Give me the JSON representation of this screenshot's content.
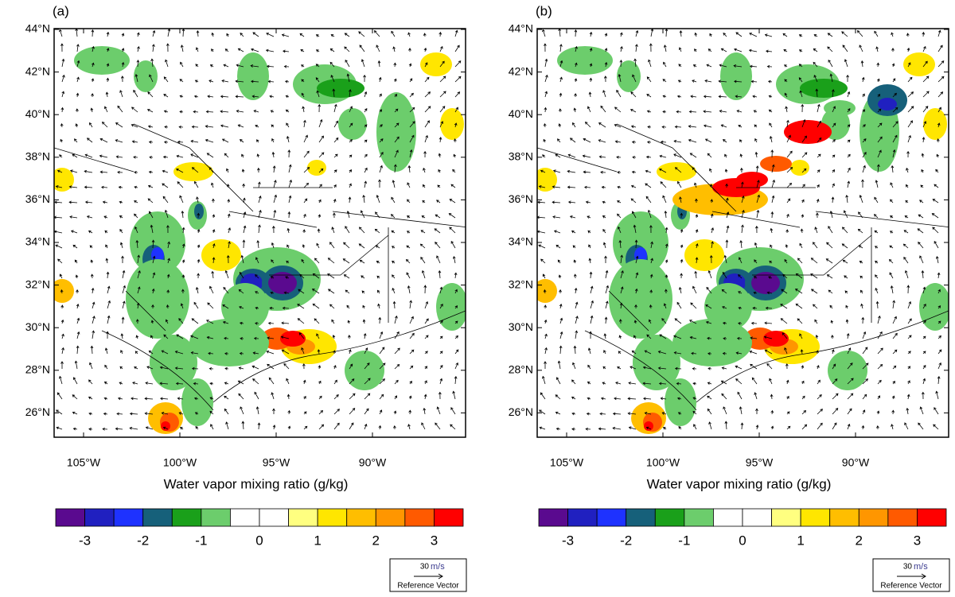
{
  "panels": [
    {
      "label": "(a)",
      "lat_ticks": [
        {
          "value": 44,
          "label": "44°N"
        },
        {
          "value": 42,
          "label": "42°N"
        },
        {
          "value": 40,
          "label": "40°N"
        },
        {
          "value": 38,
          "label": "38°N"
        },
        {
          "value": 36,
          "label": "36°N"
        },
        {
          "value": 34,
          "label": "34°N"
        },
        {
          "value": 32,
          "label": "32°N"
        },
        {
          "value": 30,
          "label": "30°N"
        },
        {
          "value": 28,
          "label": "28°N"
        },
        {
          "value": 26,
          "label": "26°N"
        }
      ],
      "lon_ticks": [
        {
          "value": -105,
          "label": "105°W"
        },
        {
          "value": -100,
          "label": "100°W"
        },
        {
          "value": -95,
          "label": "95°W"
        },
        {
          "value": -90,
          "label": "90°W"
        }
      ],
      "colorbar_title": "Water vapor mixing ratio (g/kg)",
      "colorbar_lim": [
        -3.5,
        3.5
      ],
      "colorbar_ticks": [
        -3,
        -2,
        -1,
        0,
        1,
        2,
        3
      ],
      "colorbar_colors": [
        "#5a0a8f",
        "#2020c0",
        "#1e32ff",
        "#16607a",
        "#1aa01a",
        "#6ccd6c",
        "#ffffff",
        "#ffffff",
        "#ffff80",
        "#ffe600",
        "#ffbe00",
        "#ff9600",
        "#ff5a00",
        "#ff0000"
      ],
      "ref_speed": "30",
      "ref_unit": "m/s",
      "ref_label": "Reference Vector"
    },
    {
      "label": "(b)",
      "lat_ticks": [
        {
          "value": 44,
          "label": "44°N"
        },
        {
          "value": 42,
          "label": "42°N"
        },
        {
          "value": 40,
          "label": "40°N"
        },
        {
          "value": 38,
          "label": "38°N"
        },
        {
          "value": 36,
          "label": "36°N"
        },
        {
          "value": 34,
          "label": "34°N"
        },
        {
          "value": 32,
          "label": "32°N"
        },
        {
          "value": 30,
          "label": "30°N"
        },
        {
          "value": 28,
          "label": "28°N"
        },
        {
          "value": 26,
          "label": "26°N"
        }
      ],
      "lon_ticks": [
        {
          "value": -105,
          "label": "105°W"
        },
        {
          "value": -100,
          "label": "100°W"
        },
        {
          "value": -95,
          "label": "95°W"
        },
        {
          "value": -90,
          "label": "90°W"
        }
      ],
      "colorbar_title": "Water vapor mixing ratio (g/kg)",
      "colorbar_lim": [
        -3.5,
        3.5
      ],
      "colorbar_ticks": [
        -3,
        -2,
        -1,
        0,
        1,
        2,
        3
      ],
      "colorbar_colors": [
        "#5a0a8f",
        "#2020c0",
        "#1e32ff",
        "#16607a",
        "#1aa01a",
        "#6ccd6c",
        "#ffffff",
        "#ffffff",
        "#ffff80",
        "#ffe600",
        "#ffbe00",
        "#ff9600",
        "#ff5a00",
        "#ff0000"
      ],
      "ref_speed": "30",
      "ref_unit": "m/s",
      "ref_label": "Reference Vector"
    }
  ]
}
